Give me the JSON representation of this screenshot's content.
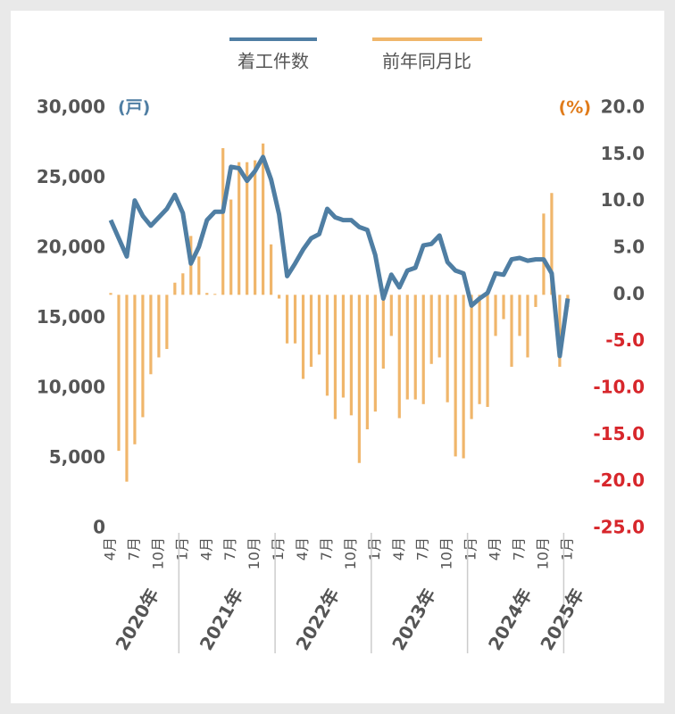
{
  "chart_data": {
    "type": "bar-line",
    "left_unit": "(戸)",
    "right_unit": "(%)",
    "categories": [
      "4月",
      null,
      null,
      "7月",
      null,
      null,
      "10月",
      null,
      null,
      "1月",
      null,
      null,
      "4月",
      null,
      null,
      "7月",
      null,
      null,
      "10月",
      null,
      null,
      "1月",
      null,
      null,
      "4月",
      null,
      null,
      "7月",
      null,
      null,
      "10月",
      null,
      null,
      "1月",
      null,
      null,
      "4月",
      null,
      null,
      "7月",
      null,
      null,
      "10月",
      null,
      null,
      "1月",
      null,
      null,
      "4月",
      null,
      null,
      "7月",
      null,
      null,
      "10月",
      null,
      null,
      "1月"
    ],
    "years": [
      "2020年",
      "2021年",
      "2022年",
      "2023年",
      "2024年",
      "2025年"
    ],
    "series": [
      {
        "name": "着工件数",
        "type": "line",
        "color": "#4f7ea3",
        "axis": "y",
        "values": [
          22000,
          20700,
          19400,
          23400,
          22300,
          21600,
          22200,
          22800,
          23800,
          22500,
          18900,
          20100,
          22000,
          22600,
          22600,
          25800,
          25700,
          24800,
          25500,
          26500,
          24900,
          22400,
          18000,
          18900,
          19900,
          20700,
          21000,
          22800,
          22200,
          22000,
          22000,
          21500,
          21300,
          19500,
          16400,
          18100,
          17200,
          18400,
          18600,
          20200,
          20300,
          20900,
          19000,
          18400,
          18200,
          15900,
          16400,
          16800,
          18200,
          18100,
          19200,
          19300,
          19100,
          19200,
          19200,
          18200,
          12300,
          16400
        ]
      },
      {
        "name": "前年同月比",
        "type": "bar",
        "color": "#f0b66b",
        "axis": "y2",
        "values": [
          0.2,
          -16.7,
          -20.0,
          -16.0,
          -13.1,
          -8.5,
          -6.7,
          -5.8,
          1.3,
          2.3,
          6.3,
          4.1,
          0.2,
          0.1,
          15.7,
          10.2,
          14.2,
          14.2,
          14.4,
          16.2,
          5.4,
          -0.4,
          -5.2,
          -5.2,
          -9.0,
          -7.7,
          -6.4,
          -10.8,
          -13.3,
          -11.0,
          -12.9,
          -18.0,
          -14.4,
          -12.5,
          -7.9,
          -4.4,
          -13.2,
          -11.2,
          -11.2,
          -11.7,
          -7.4,
          -6.7,
          -11.5,
          -17.3,
          -17.5,
          -13.3,
          -11.7,
          -12.0,
          -4.4,
          -2.6,
          -7.7,
          -4.4,
          -6.7,
          -1.3,
          8.7,
          10.9,
          -7.7,
          -1.3
        ]
      }
    ],
    "ylim": [
      0,
      30000
    ],
    "yticks": [
      0,
      {
        "value": 5000,
        "label": "5,000"
      },
      {
        "value": 10000,
        "label": "10,000"
      },
      {
        "value": 15000,
        "label": "15,000"
      },
      {
        "value": 20000,
        "label": "20,000"
      },
      {
        "value": 25000,
        "label": "25,000"
      },
      {
        "value": 30000,
        "label": "30,000"
      }
    ],
    "y2lim": [
      -25,
      20
    ],
    "y2ticks": [
      {
        "value": -25,
        "label": "-25.0"
      },
      {
        "value": -20,
        "label": "-20.0"
      },
      {
        "value": -15,
        "label": "-15.0"
      },
      {
        "value": -10,
        "label": "-10.0"
      },
      {
        "value": -5,
        "label": "-5.0"
      },
      {
        "value": 0,
        "label": "0.0"
      },
      {
        "value": 5,
        "label": "5.0"
      },
      {
        "value": 10,
        "label": "10.0"
      },
      {
        "value": 15,
        "label": "15.0"
      },
      {
        "value": 20,
        "label": "20.0"
      }
    ],
    "tick_color": "#555555",
    "negative_tick_color": "#d7262b",
    "left_unit_color": "#4f7ea3",
    "right_unit_color": "#e07b1a"
  }
}
